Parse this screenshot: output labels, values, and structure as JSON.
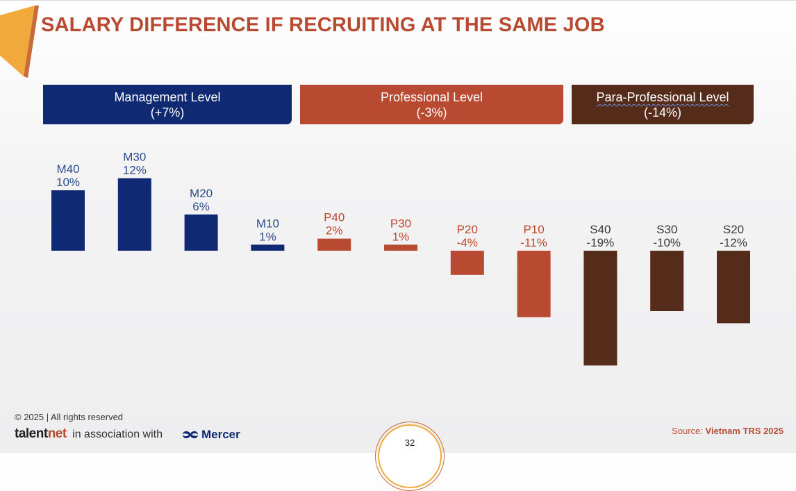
{
  "title": "SALARY DIFFERENCE IF RECRUITING AT THE SAME JOB",
  "levels": [
    {
      "label": "Management Level",
      "pct": "(+7%)",
      "color": "#0f2a73"
    },
    {
      "label": "Professional Level",
      "pct": "(-3%)",
      "color": "#b84a32"
    },
    {
      "label": "Para-Professional Level",
      "pct": "(-14%)",
      "color": "#552b1a"
    }
  ],
  "chart_data": {
    "type": "bar",
    "categories": [
      "M40",
      "M30",
      "M20",
      "M10",
      "P40",
      "P30",
      "P20",
      "P10",
      "S40",
      "S30",
      "S20"
    ],
    "values": [
      10,
      12,
      6,
      1,
      2,
      1,
      -4,
      -11,
      -19,
      -10,
      -12
    ],
    "data_labels": [
      "10%",
      "12%",
      "6%",
      "1%",
      "2%",
      "1%",
      "-4%",
      "-11%",
      "-19%",
      "-10%",
      "-12%"
    ],
    "groups": [
      "Management Level",
      "Management Level",
      "Management Level",
      "Management Level",
      "Professional Level",
      "Professional Level",
      "Professional Level",
      "Professional Level",
      "Para-Professional Level",
      "Para-Professional Level",
      "Para-Professional Level"
    ],
    "colors": {
      "Management Level": "#0f2a73",
      "Professional Level": "#b84a32",
      "Para-Professional Level": "#552b1a"
    },
    "label_colors": {
      "Management Level": "#2c4a8a",
      "Professional Level": "#c0452a",
      "Para-Professional Level": "#3a3a3a"
    },
    "title": "",
    "xlabel": "",
    "ylabel": "",
    "unit": "%",
    "grid": false,
    "legend": "none"
  },
  "footer": {
    "copyright": "© 2025  | All rights reserved",
    "brand_talent": "talent",
    "brand_net": "net",
    "association": "in association with",
    "partner": "Mercer",
    "page_number": "32",
    "source_prefix": "Source: ",
    "source_name": "Vietnam TRS 2025"
  },
  "icons": {
    "corner": "orange-corner-shape",
    "mercer_logo": "mercer-logo-icon"
  }
}
